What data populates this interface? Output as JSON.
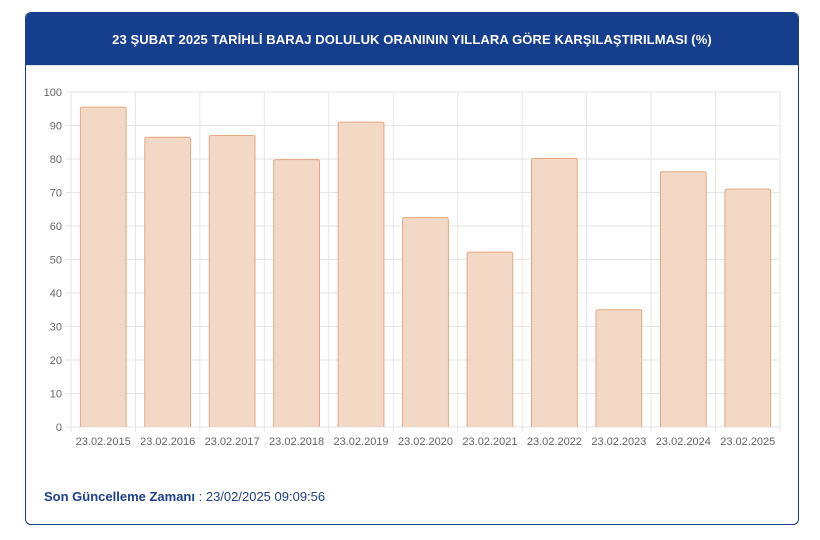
{
  "header": {
    "title": "23 ŞUBAT 2025 TARİHLİ BARAJ DOLULUK ORANININ YILLARA GÖRE KARŞILAŞTIRILMASI (%)"
  },
  "footer": {
    "label": "Son Güncelleme Zamanı",
    "separator": " : ",
    "value": "23/02/2025 09:09:56"
  },
  "colors": {
    "bar_fill": "#f3d8c6",
    "bar_stroke": "#e4a77f",
    "header_bg": "#153f8d",
    "grid": "#e6e6e6"
  },
  "chart_data": {
    "type": "bar",
    "title": "23 ŞUBAT 2025 TARİHLİ BARAJ DOLULUK ORANININ YILLARA GÖRE KARŞILAŞTIRILMASI (%)",
    "categories": [
      "23.02.2015",
      "23.02.2016",
      "23.02.2017",
      "23.02.2018",
      "23.02.2019",
      "23.02.2020",
      "23.02.2021",
      "23.02.2022",
      "23.02.2023",
      "23.02.2024",
      "23.02.2025"
    ],
    "values": [
      95.5,
      86.5,
      87,
      79.8,
      91,
      62.5,
      52.2,
      80.2,
      35,
      76.2,
      71
    ],
    "ylim": [
      0,
      100
    ],
    "yticks": [
      0,
      10,
      20,
      30,
      40,
      50,
      60,
      70,
      80,
      90,
      100
    ],
    "grid": true,
    "legend": "none"
  }
}
